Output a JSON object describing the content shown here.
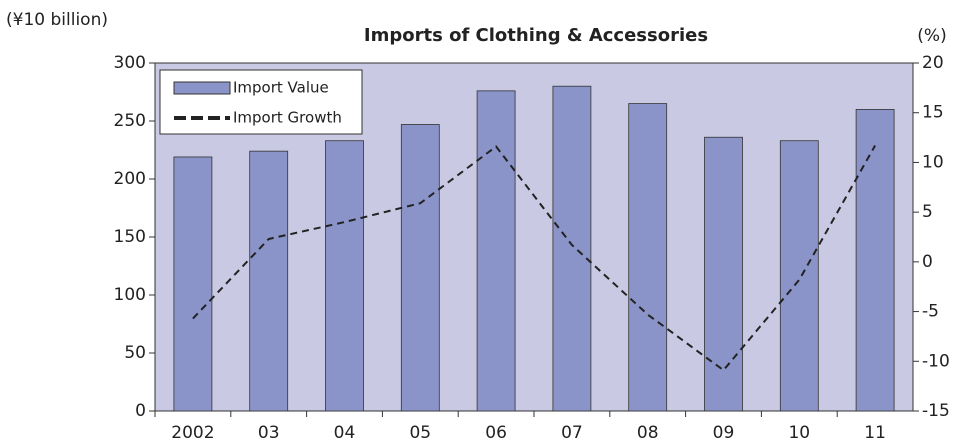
{
  "chart_data": {
    "type": "bar",
    "title": "Imports of Clothing & Accessories",
    "y_label": "(¥10 billion)",
    "y2_label": "(%)",
    "categories": [
      "2002",
      "03",
      "04",
      "05",
      "06",
      "07",
      "08",
      "09",
      "10",
      "11"
    ],
    "series": [
      {
        "name": "Import Value",
        "type": "bar",
        "color": "#8a94c8",
        "values": [
          219,
          224,
          233,
          247,
          276,
          280,
          265,
          236,
          233,
          260
        ]
      },
      {
        "name": "Import Growth",
        "type": "line",
        "axis": "y2",
        "color": "#222222",
        "dashed": true,
        "values": [
          -5.7,
          2.3,
          4.0,
          5.9,
          11.6,
          1.7,
          -5.3,
          -10.9,
          -1.8,
          11.7
        ]
      }
    ],
    "ylim": [
      0,
      300
    ],
    "yticks": [
      0,
      50,
      100,
      150,
      200,
      250,
      300
    ],
    "y2lim": [
      -15,
      20
    ],
    "y2ticks": [
      -15,
      -10,
      -5,
      0,
      5,
      10,
      15,
      20
    ],
    "legend": "upper left",
    "plot_background": "#c9c9e3"
  }
}
